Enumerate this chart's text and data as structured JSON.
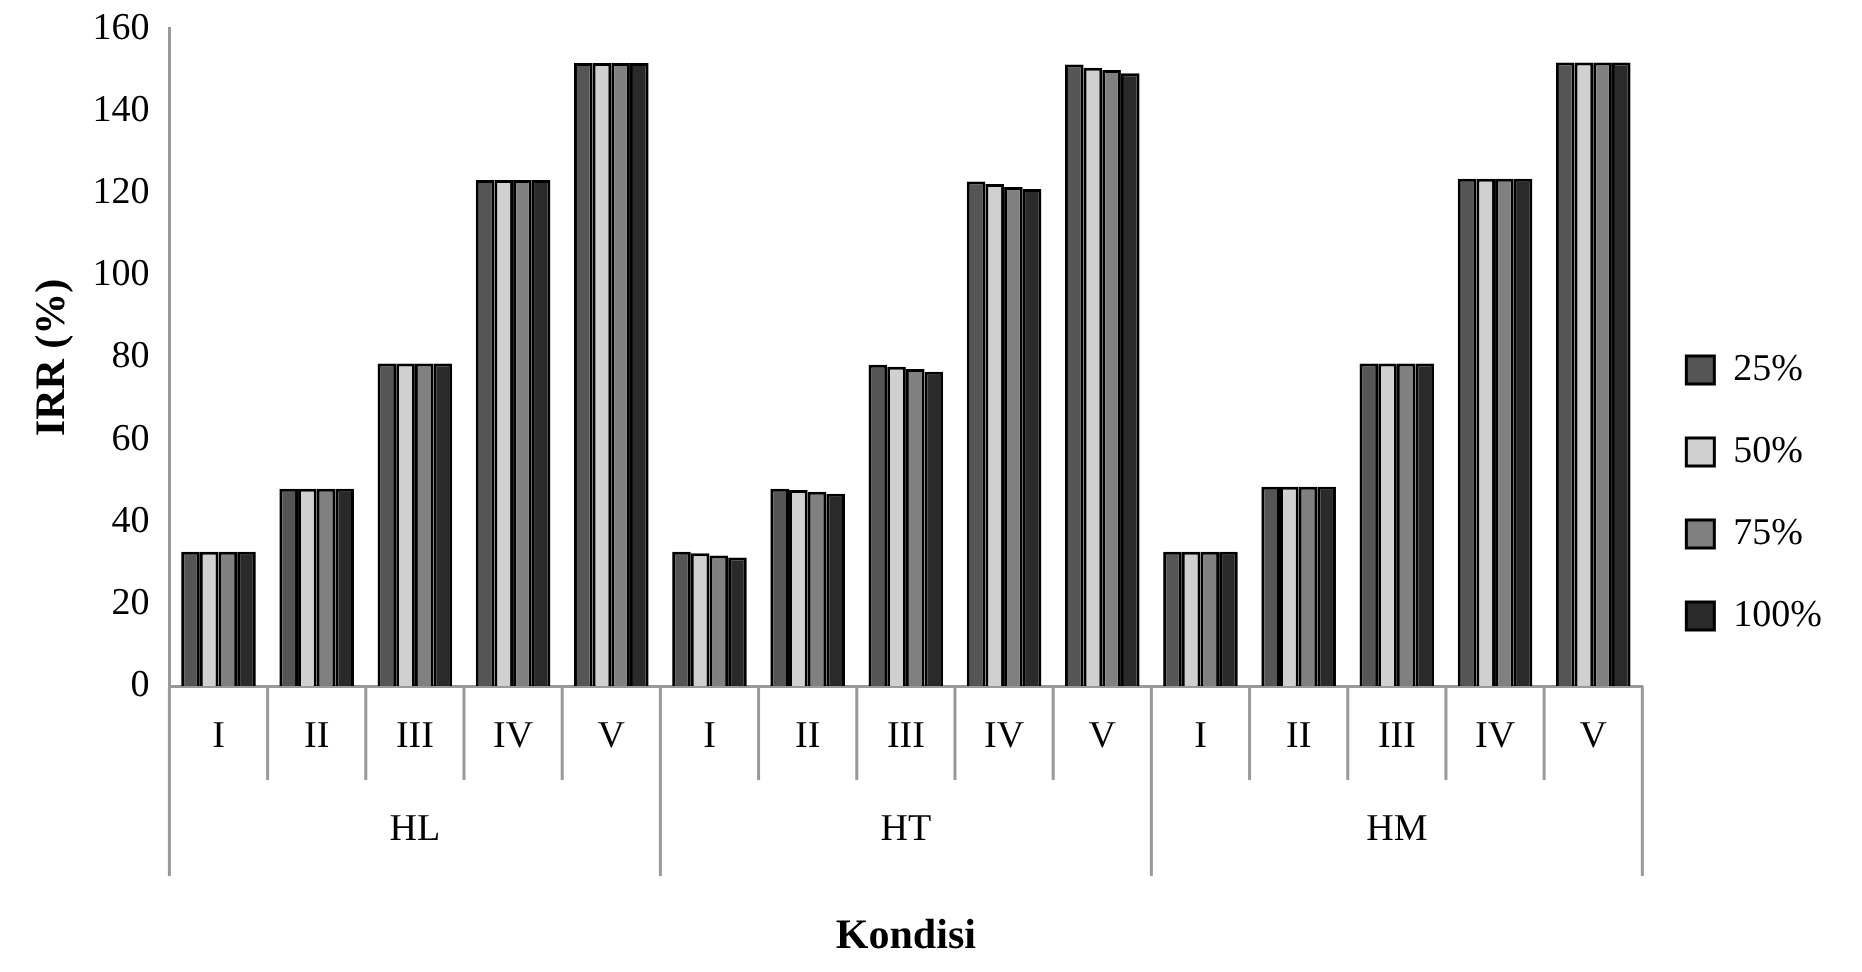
{
  "chart_data": {
    "type": "bar",
    "xlabel": "Kondisi",
    "ylabel": "IRR (%)",
    "categories": [
      "I",
      "II",
      "III",
      "IV",
      "V",
      "I",
      "II",
      "III",
      "IV",
      "V",
      "I",
      "II",
      "III",
      "IV",
      "V"
    ],
    "annotations": [
      "HL",
      "HT",
      "HM"
    ],
    "series": [
      {
        "name": "25%",
        "color": "#555555",
        "values": [
          32.7,
          48,
          78.5,
          123.2,
          151.7,
          32.7,
          48,
          78.2,
          122.8,
          151.3,
          32.7,
          48.5,
          78.5,
          123.5,
          151.8
        ]
      },
      {
        "name": "50%",
        "color": "#d0d0d0",
        "values": [
          32.7,
          48,
          78.5,
          123.2,
          151.7,
          32.3,
          47.7,
          77.7,
          122.2,
          150.5,
          32.7,
          48.5,
          78.5,
          123.5,
          151.8
        ]
      },
      {
        "name": "75%",
        "color": "#808080",
        "values": [
          32.7,
          48,
          78.5,
          123.2,
          151.7,
          31.8,
          47.3,
          77.2,
          121.5,
          150,
          32.7,
          48.5,
          78.5,
          123.5,
          151.8
        ]
      },
      {
        "name": "100%",
        "color": "#2a2a2a",
        "values": [
          32.7,
          48,
          78.5,
          123.2,
          151.7,
          31.3,
          46.8,
          76.5,
          121,
          149.2,
          32.7,
          48.5,
          78.5,
          123.5,
          151.8
        ]
      }
    ],
    "ylim": [
      0,
      160
    ],
    "yticks": [
      0,
      20,
      40,
      60,
      80,
      100,
      120,
      140,
      160
    ],
    "grid": false,
    "legend": "right"
  }
}
